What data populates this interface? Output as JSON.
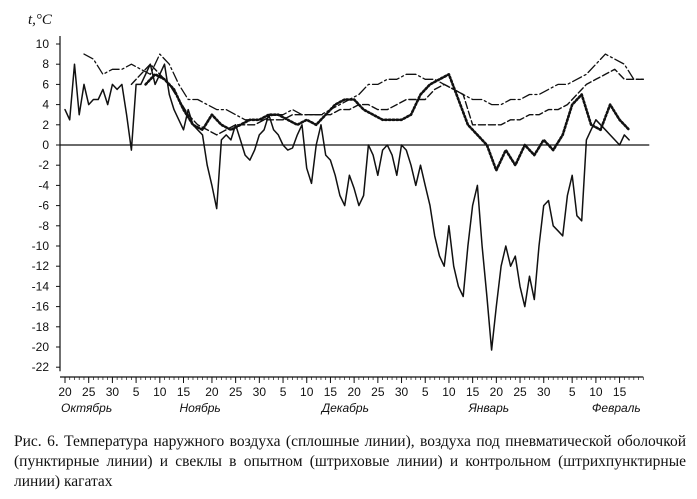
{
  "caption": "Рис. 6. Температура наружного воздуха (сплошные линии), воздуха под пневматической оболочкой (пунктирные линии) и свеклы в опытном (штриховые линии) и контрольном (штрихпунктирные линии) кагатах",
  "chart_data": {
    "type": "line",
    "ylabel": "t,°C",
    "ylim": [
      -22,
      10
    ],
    "yticks": [
      10,
      8,
      6,
      4,
      2,
      0,
      -2,
      -4,
      -6,
      -8,
      -10,
      -12,
      -14,
      -16,
      -18,
      -20,
      -22
    ],
    "x_unit": "day index from 20 October",
    "xlim": [
      0,
      122
    ],
    "xticks": [
      {
        "day": 0,
        "label": "20"
      },
      {
        "day": 5,
        "label": "25"
      },
      {
        "day": 10,
        "label": "30"
      },
      {
        "day": 15,
        "label": "5"
      },
      {
        "day": 20,
        "label": "10"
      },
      {
        "day": 25,
        "label": "15"
      },
      {
        "day": 31,
        "label": "20"
      },
      {
        "day": 36,
        "label": "25"
      },
      {
        "day": 41,
        "label": "30"
      },
      {
        "day": 46,
        "label": "5"
      },
      {
        "day": 51,
        "label": "10"
      },
      {
        "day": 56,
        "label": "15"
      },
      {
        "day": 61,
        "label": "20"
      },
      {
        "day": 66,
        "label": "25"
      },
      {
        "day": 71,
        "label": "30"
      },
      {
        "day": 76,
        "label": "5"
      },
      {
        "day": 81,
        "label": "10"
      },
      {
        "day": 86,
        "label": "15"
      },
      {
        "day": 91,
        "label": "20"
      },
      {
        "day": 96,
        "label": "25"
      },
      {
        "day": 101,
        "label": "30"
      },
      {
        "day": 107,
        "label": "5"
      },
      {
        "day": 112,
        "label": "10"
      },
      {
        "day": 117,
        "label": "15"
      }
    ],
    "months": [
      {
        "label": "Октябрь",
        "day": 0
      },
      {
        "label": "Ноябрь",
        "day": 25
      },
      {
        "label": "Декабрь",
        "day": 55
      },
      {
        "label": "Январь",
        "day": 86
      },
      {
        "label": "Февраль",
        "day": 112
      }
    ],
    "series": [
      {
        "style": "solid",
        "x": [
          0,
          1,
          2,
          3,
          4,
          5,
          6,
          7,
          8,
          9,
          10,
          11,
          12,
          13,
          14,
          15,
          16,
          17,
          18,
          19,
          20,
          21,
          22,
          23,
          24,
          25,
          26,
          27,
          28,
          29,
          30,
          31,
          32,
          33,
          34,
          35,
          36,
          37,
          38,
          39,
          40,
          41,
          42,
          43,
          44,
          45,
          46,
          47,
          48,
          49,
          50,
          51,
          52,
          53,
          54,
          55,
          56,
          57,
          58,
          59,
          60,
          61,
          62,
          63,
          64,
          65,
          66,
          67,
          68,
          69,
          70,
          71,
          72,
          73,
          74,
          75,
          76,
          77,
          78,
          79,
          80,
          81,
          82,
          83,
          84,
          85,
          86,
          87,
          88,
          89,
          90,
          91,
          92,
          93,
          94,
          95,
          96,
          97,
          98,
          99,
          100,
          101,
          102,
          103,
          104,
          105,
          106,
          107,
          108,
          109,
          110,
          111,
          112,
          113,
          114,
          115,
          116,
          117,
          118,
          119
        ],
        "y": [
          3.5,
          2.5,
          8,
          3,
          6,
          4,
          4.5,
          4.5,
          5.5,
          4,
          6,
          5.5,
          6,
          3,
          -0.5,
          6,
          6,
          7,
          8,
          6,
          7,
          8,
          5,
          3.5,
          2.5,
          1.5,
          3.5,
          2,
          1.5,
          1,
          -2,
          -4,
          -6.3,
          0.5,
          1,
          0.5,
          2,
          0.5,
          -1,
          -1.5,
          -0.5,
          1,
          1.5,
          3,
          1.5,
          1,
          0,
          -0.5,
          -0.3,
          1,
          2,
          -2.3,
          -3.8,
          0,
          2,
          -1,
          -1.5,
          -3,
          -5,
          -6,
          -3,
          -4.3,
          -6,
          -5,
          0,
          -1,
          -3,
          -0.5,
          0,
          -1,
          -3,
          0,
          -0.5,
          -2,
          -4,
          -2,
          -4,
          -6,
          -9,
          -11,
          -12,
          -8,
          -12,
          -14,
          -15,
          -10,
          -6,
          -4,
          -10,
          -15,
          -20.3,
          -16,
          -12,
          -10,
          -12,
          -11,
          -14,
          -16,
          -13,
          -15.3,
          -10,
          -6,
          -5.5,
          -8,
          -8.5,
          -9,
          -5,
          -3,
          -7,
          -7.5,
          0.5,
          1.5,
          2.5,
          2,
          1.5,
          1,
          0.5,
          0,
          1,
          0.5
        ]
      },
      {
        "style": "dotted",
        "x": [
          17,
          19,
          21,
          23,
          25,
          27,
          29,
          31,
          33,
          35,
          37,
          39,
          41,
          43,
          45,
          47,
          49,
          51,
          53,
          55,
          57,
          59,
          61,
          63,
          65,
          67,
          69,
          71,
          73,
          75,
          77,
          79,
          81,
          83,
          85,
          87,
          89,
          91,
          93,
          95,
          97,
          99,
          101,
          103,
          105,
          107,
          109,
          111,
          113,
          115,
          117,
          119
        ],
        "y": [
          6,
          7,
          6.5,
          5.5,
          3.5,
          2,
          1.5,
          3,
          2,
          1.5,
          2,
          2.5,
          2.5,
          3,
          3,
          2.5,
          2,
          2.5,
          2,
          3,
          4,
          4.5,
          4.5,
          3.5,
          3,
          2.5,
          2.5,
          2.5,
          3,
          5,
          6,
          6.5,
          7,
          4.5,
          2,
          1,
          0,
          -2.5,
          -0.5,
          -2,
          0,
          -1,
          0.5,
          -0.5,
          1,
          4,
          5,
          2,
          1.5,
          4,
          2.5,
          1.5
        ]
      },
      {
        "style": "dashed",
        "x": [
          14,
          16,
          18,
          20,
          22,
          24,
          26,
          28,
          30,
          32,
          34,
          36,
          38,
          40,
          42,
          44,
          46,
          48,
          50,
          52,
          54,
          56,
          58,
          60,
          62,
          64,
          66,
          68,
          70,
          72,
          74,
          76,
          78,
          80,
          82,
          84,
          86,
          88,
          90,
          92,
          94,
          96,
          98,
          100,
          102,
          104,
          106,
          108,
          110,
          112,
          114,
          116,
          118,
          120,
          122
        ],
        "y": [
          6,
          7,
          8,
          7,
          6,
          4.5,
          3,
          2,
          1.5,
          1,
          1.5,
          2,
          2,
          2,
          2.5,
          2.5,
          2.5,
          3,
          3,
          3,
          3,
          3,
          3.5,
          3.5,
          4,
          4,
          3.5,
          3.5,
          4,
          4.5,
          4.5,
          4.5,
          5.5,
          6,
          5.5,
          5,
          2,
          2,
          2,
          2,
          2.5,
          2.5,
          3,
          3,
          3.5,
          3.5,
          4,
          5,
          6,
          6.5,
          7,
          7.5,
          6.5,
          6.5,
          6.5
        ]
      },
      {
        "style": "dashdot",
        "x": [
          4,
          6,
          8,
          10,
          12,
          14,
          16,
          18,
          20,
          22,
          24,
          26,
          28,
          30,
          32,
          34,
          36,
          38,
          40,
          42,
          44,
          46,
          48,
          50,
          52,
          54,
          56,
          58,
          60,
          62,
          64,
          66,
          68,
          70,
          72,
          74,
          76,
          78,
          80,
          82,
          84,
          86,
          88,
          90,
          92,
          94,
          96,
          98,
          100,
          102,
          104,
          106,
          108,
          110,
          112,
          114,
          116,
          118,
          120,
          122
        ],
        "y": [
          9,
          8.5,
          7,
          7.5,
          7.5,
          8,
          7.5,
          7,
          9,
          8,
          6,
          4.5,
          4.5,
          4,
          3.5,
          3.5,
          3,
          2.5,
          2.5,
          2.5,
          3,
          3,
          3.5,
          3,
          3,
          3,
          3.5,
          4,
          4.5,
          5,
          6,
          6,
          6.5,
          6.5,
          7,
          7,
          6.5,
          6.5,
          6,
          5.5,
          5,
          4.5,
          4.5,
          4,
          4,
          4.5,
          4.5,
          5,
          5,
          5.5,
          6,
          6,
          6.5,
          7,
          8,
          9,
          8.5,
          8,
          6.5,
          6.5
        ]
      }
    ]
  }
}
